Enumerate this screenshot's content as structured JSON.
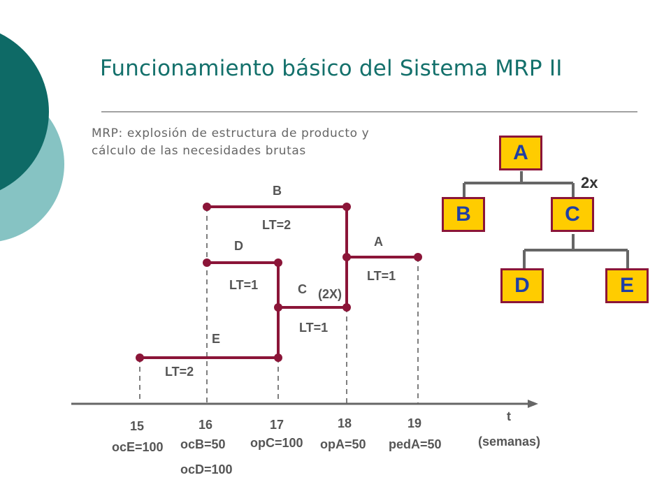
{
  "title": "Funcionamiento básico del Sistema MRP II",
  "subtitle_line1": "MRP: explosión de estructura de producto y",
  "subtitle_line2": "cálculo de las necesidades brutas",
  "tree": {
    "root": "A",
    "level1": [
      "B",
      "C"
    ],
    "level2": [
      "D",
      "E"
    ],
    "multiplier": "2x"
  },
  "timeline": {
    "item_labels": {
      "B": "B",
      "D": "D",
      "C": "C",
      "C_mult": "(2X)",
      "A": "A",
      "E": "E"
    },
    "lead_times": {
      "B": "LT=2",
      "D": "LT=1",
      "C": "LT=1",
      "A": "LT=1",
      "E": "LT=2"
    },
    "axis_label": "t",
    "axis_unit": "(semanas)",
    "weeks": [
      {
        "week": "15",
        "orders": [
          "ocE=100"
        ]
      },
      {
        "week": "16",
        "orders": [
          "ocB=50",
          "ocD=100"
        ]
      },
      {
        "week": "17",
        "orders": [
          "opC=100"
        ]
      },
      {
        "week": "18",
        "orders": [
          "opA=50"
        ]
      },
      {
        "week": "19",
        "orders": [
          "pedA=50"
        ]
      }
    ]
  },
  "colors": {
    "title": "#13706B",
    "line": "#8B1538",
    "box_fill": "#FFCC00",
    "box_text": "#1F3FA5",
    "accent_dark": "#0E6A66",
    "accent_light": "#86C3C3"
  }
}
